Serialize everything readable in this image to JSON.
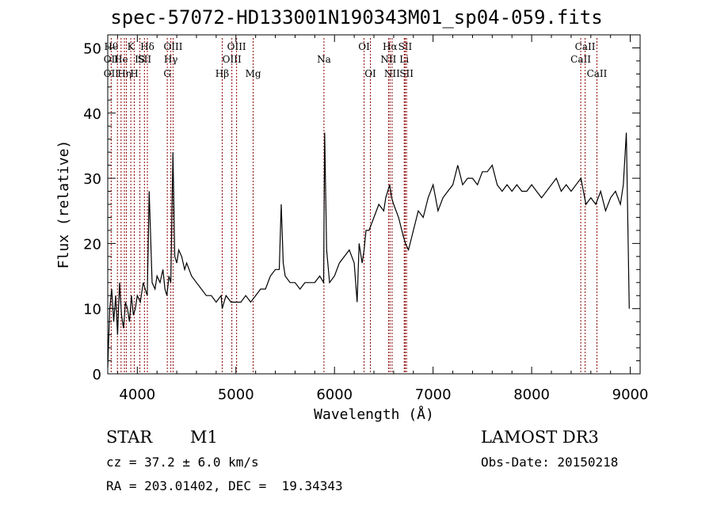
{
  "title": "spec-57072-HD133001N190343M01_sp04-059.fits",
  "info": {
    "class": "STAR",
    "subclass": "M1",
    "survey": "LAMOST DR3",
    "cz": "cz = 37.2 ± 6.0 km/s",
    "obs_date": "Obs-Date: 20150218",
    "coords": "RA = 203.01402, DEC =  19.34343"
  },
  "colors": {
    "line": "#000000",
    "marker": "#8b0000"
  },
  "chart_data": {
    "type": "line",
    "xlabel": "Wavelength (Å)",
    "ylabel": "Flux (relative)",
    "xlim": [
      3700,
      9100
    ],
    "ylim": [
      0,
      52
    ],
    "xticks": [
      4000,
      5000,
      6000,
      7000,
      8000,
      9000
    ],
    "yticks": [
      0,
      10,
      20,
      30,
      40,
      50
    ],
    "grid": false,
    "series": [
      {
        "x": [
          3700,
          3720,
          3740,
          3760,
          3780,
          3800,
          3820,
          3840,
          3860,
          3880,
          3900,
          3920,
          3940,
          3960,
          3980,
          4000,
          4030,
          4060,
          4080,
          4101,
          4120,
          4150,
          4180,
          4200,
          4230,
          4260,
          4280,
          4300,
          4320,
          4340,
          4361,
          4380,
          4400,
          4420,
          4450,
          4480,
          4500,
          4550,
          4600,
          4650,
          4700,
          4750,
          4800,
          4850,
          4861,
          4880,
          4900,
          4950,
          5000,
          5050,
          5100,
          5150,
          5200,
          5250,
          5300,
          5350,
          5400,
          5440,
          5460,
          5480,
          5500,
          5550,
          5600,
          5650,
          5700,
          5750,
          5800,
          5850,
          5890,
          5900,
          5920,
          5950,
          6000,
          6050,
          6100,
          6150,
          6200,
          6230,
          6250,
          6280,
          6300,
          6320,
          6350,
          6400,
          6450,
          6500,
          6520,
          6560,
          6580,
          6600,
          6650,
          6700,
          6720,
          6750,
          6800,
          6850,
          6900,
          6950,
          7000,
          7050,
          7100,
          7150,
          7200,
          7250,
          7300,
          7350,
          7400,
          7450,
          7500,
          7550,
          7600,
          7650,
          7700,
          7750,
          7800,
          7850,
          7900,
          7950,
          8000,
          8050,
          8100,
          8150,
          8200,
          8250,
          8300,
          8350,
          8400,
          8450,
          8500,
          8550,
          8600,
          8650,
          8700,
          8750,
          8800,
          8850,
          8900,
          8930,
          8960,
          8990
        ],
        "y": [
          1,
          10,
          13,
          8,
          12,
          6,
          14,
          9,
          7,
          11,
          10,
          8,
          12,
          9,
          10,
          12,
          11,
          14,
          13,
          12,
          28,
          14,
          13,
          15,
          14,
          16,
          13,
          12,
          15,
          14,
          34,
          18,
          17,
          19,
          18,
          16,
          17,
          15,
          14,
          13,
          12,
          12,
          11,
          12,
          10,
          11,
          12,
          11,
          11,
          11,
          12,
          11,
          12,
          13,
          13,
          15,
          16,
          16,
          26,
          17,
          15,
          14,
          14,
          13,
          14,
          14,
          14,
          15,
          14,
          37,
          19,
          14,
          15,
          17,
          18,
          19,
          17,
          11,
          20,
          17,
          19,
          22,
          22,
          24,
          26,
          25,
          27,
          29,
          27,
          26,
          24,
          21,
          20,
          19,
          22,
          25,
          24,
          27,
          29,
          25,
          27,
          28,
          29,
          32,
          29,
          30,
          30,
          29,
          31,
          31,
          32,
          29,
          28,
          29,
          28,
          29,
          28,
          28,
          29,
          28,
          27,
          28,
          29,
          30,
          28,
          29,
          28,
          29,
          30,
          26,
          27,
          26,
          28,
          25,
          27,
          28,
          26,
          29,
          37,
          10
        ]
      }
    ],
    "lines": [
      {
        "x": 3735,
        "labels": [
          {
            "text": "Hθ",
            "row": 1
          },
          {
            "text": "OII",
            "row": 2
          },
          {
            "text": "OII",
            "row": 3
          }
        ]
      },
      {
        "x": 3798,
        "labels": []
      },
      {
        "x": 3835,
        "labels": [
          {
            "text": "He",
            "row": 2
          }
        ]
      },
      {
        "x": 3869,
        "labels": [
          {
            "text": "Hη",
            "row": 3
          }
        ]
      },
      {
        "x": 3889,
        "labels": []
      },
      {
        "x": 3934,
        "labels": [
          {
            "text": "K",
            "row": 1
          }
        ]
      },
      {
        "x": 3969,
        "labels": [
          {
            "text": "H",
            "row": 3
          }
        ]
      },
      {
        "x": 4026,
        "labels": [
          {
            "text": "IS",
            "row": 2
          }
        ]
      },
      {
        "x": 4072,
        "labels": [
          {
            "text": "SII",
            "row": 2
          }
        ]
      },
      {
        "x": 4102,
        "labels": [
          {
            "text": "Hδ",
            "row": 1
          }
        ]
      },
      {
        "x": 4304,
        "labels": [
          {
            "text": "G",
            "row": 3
          }
        ]
      },
      {
        "x": 4340,
        "labels": [
          {
            "text": "Hγ",
            "row": 2
          }
        ]
      },
      {
        "x": 4363,
        "labels": [
          {
            "text": "OIII",
            "row": 1
          }
        ]
      },
      {
        "x": 4861,
        "labels": [
          {
            "text": "Hβ",
            "row": 3
          }
        ]
      },
      {
        "x": 4959,
        "labels": [
          {
            "text": "OIII",
            "row": 2
          }
        ]
      },
      {
        "x": 5007,
        "labels": [
          {
            "text": "OIII",
            "row": 1
          }
        ]
      },
      {
        "x": 5175,
        "labels": [
          {
            "text": "Mg",
            "row": 3
          }
        ]
      },
      {
        "x": 5893,
        "labels": [
          {
            "text": "Na",
            "row": 2
          }
        ]
      },
      {
        "x": 6300,
        "labels": [
          {
            "text": "OI",
            "row": 1
          }
        ]
      },
      {
        "x": 6364,
        "labels": [
          {
            "text": "OI",
            "row": 3
          }
        ]
      },
      {
        "x": 6548,
        "labels": [
          {
            "text": "NII",
            "row": 2
          }
        ]
      },
      {
        "x": 6563,
        "labels": [
          {
            "text": "Hα",
            "row": 1
          }
        ]
      },
      {
        "x": 6584,
        "labels": [
          {
            "text": "NII",
            "row": 3
          }
        ]
      },
      {
        "x": 6707,
        "labels": [
          {
            "text": "Li",
            "row": 2
          }
        ]
      },
      {
        "x": 6717,
        "labels": [
          {
            "text": "SII",
            "row": 1
          }
        ]
      },
      {
        "x": 6731,
        "labels": [
          {
            "text": "SII",
            "row": 3
          }
        ]
      },
      {
        "x": 8498,
        "labels": [
          {
            "text": "CaII",
            "row": 2
          }
        ]
      },
      {
        "x": 8542,
        "labels": [
          {
            "text": "CaII",
            "row": 1
          }
        ]
      },
      {
        "x": 8662,
        "labels": [
          {
            "text": "CaII",
            "row": 3
          }
        ]
      }
    ]
  }
}
